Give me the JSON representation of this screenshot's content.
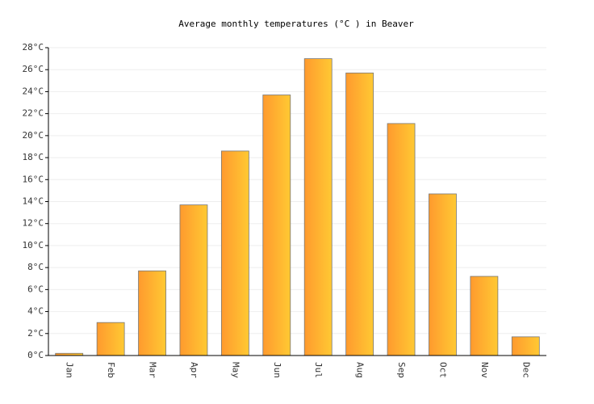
{
  "chart_data": {
    "type": "bar",
    "title": "Average monthly temperatures (°C ) in Beaver",
    "categories": [
      "Jan",
      "Feb",
      "Mar",
      "Apr",
      "May",
      "Jun",
      "Jul",
      "Aug",
      "Sep",
      "Oct",
      "Nov",
      "Dec"
    ],
    "values": [
      0.2,
      3.0,
      7.7,
      13.7,
      18.6,
      23.7,
      27.0,
      25.7,
      21.1,
      14.7,
      7.2,
      1.7
    ],
    "gradient": [
      "#ff9a2e",
      "#ffc933"
    ],
    "ylim": [
      0,
      28
    ],
    "yticks": [
      {
        "value": 0,
        "label": "0°C"
      },
      {
        "value": 2,
        "label": "2°C"
      },
      {
        "value": 4,
        "label": "4°C"
      },
      {
        "value": 6,
        "label": "6°C"
      },
      {
        "value": 8,
        "label": "8°C"
      },
      {
        "value": 10,
        "label": "10°C"
      },
      {
        "value": 12,
        "label": "12°C"
      },
      {
        "value": 14,
        "label": "14°C"
      },
      {
        "value": 16,
        "label": "16°C"
      },
      {
        "value": 18,
        "label": "18°C"
      },
      {
        "value": 20,
        "label": "20°C"
      },
      {
        "value": 22,
        "label": "22°C"
      },
      {
        "value": 24,
        "label": "24°C"
      },
      {
        "value": 26,
        "label": "26°C"
      },
      {
        "value": 28,
        "label": "28°C"
      }
    ],
    "grid": true
  }
}
